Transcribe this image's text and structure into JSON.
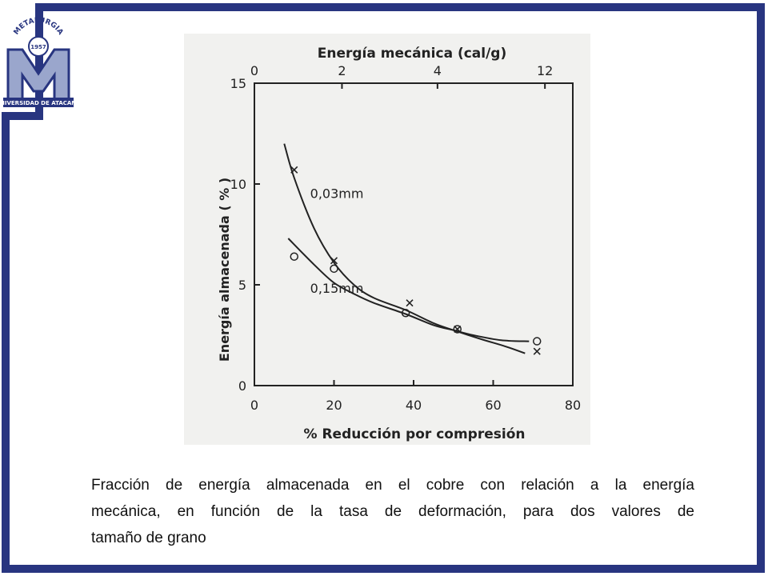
{
  "logo": {
    "arc_text": "METALURGIA",
    "year": "1957",
    "letter": "M",
    "band_text": "UNIVERSIDAD DE ATACAMA",
    "colors": {
      "primary": "#283580",
      "light": "#9aa6cc"
    }
  },
  "chart_data": {
    "type": "line",
    "title": "",
    "xlabel": "% Reducción por compresión",
    "ylabel": "Energía almacenada ( % )",
    "x2label": "Energía mecánica (cal/g)",
    "xlim": [
      0,
      80
    ],
    "ylim": [
      0,
      15
    ],
    "x_ticks": [
      "0",
      "20",
      "40",
      "60",
      "80"
    ],
    "y_ticks": [
      "0",
      "5",
      "10",
      "15"
    ],
    "x2_ticks": [
      {
        "label": "0",
        "at": 0
      },
      {
        "label": "2",
        "at": 22
      },
      {
        "label": "4",
        "at": 46
      },
      {
        "label": "12",
        "at": 73
      }
    ],
    "series": [
      {
        "name": "0,03mm",
        "marker": "x",
        "label_at": {
          "x": 14,
          "y": 9.3
        },
        "curve": [
          [
            7.5,
            12
          ],
          [
            10,
            10.3
          ],
          [
            15,
            7.8
          ],
          [
            20,
            6.1
          ],
          [
            25,
            5.0
          ],
          [
            30,
            4.35
          ],
          [
            38,
            3.75
          ],
          [
            45,
            3.1
          ],
          [
            50,
            2.75
          ],
          [
            57,
            2.3
          ],
          [
            63,
            1.95
          ],
          [
            68,
            1.6
          ]
        ],
        "points": [
          [
            10,
            10.7
          ],
          [
            20,
            6.2
          ],
          [
            39,
            4.1
          ],
          [
            51,
            2.8
          ],
          [
            71,
            1.7
          ]
        ]
      },
      {
        "name": "0,15mm",
        "marker": "o",
        "label_at": {
          "x": 14,
          "y": 4.6
        },
        "curve": [
          [
            8.5,
            7.3
          ],
          [
            15,
            6.0
          ],
          [
            20,
            5.1
          ],
          [
            25,
            4.55
          ],
          [
            30,
            4.1
          ],
          [
            38,
            3.55
          ],
          [
            45,
            3.0
          ],
          [
            50,
            2.75
          ],
          [
            55,
            2.5
          ],
          [
            62,
            2.25
          ],
          [
            69,
            2.2
          ]
        ],
        "points": [
          [
            10,
            6.4
          ],
          [
            20,
            5.8
          ],
          [
            38,
            3.6
          ],
          [
            51,
            2.8
          ],
          [
            71,
            2.2
          ]
        ]
      }
    ]
  },
  "caption": {
    "line1": "Fracción de energía almacenada en el cobre con relación a la energía",
    "line2": "mecánica, en función de la tasa de deformación, para dos valores de",
    "line3": "tamaño de grano"
  }
}
